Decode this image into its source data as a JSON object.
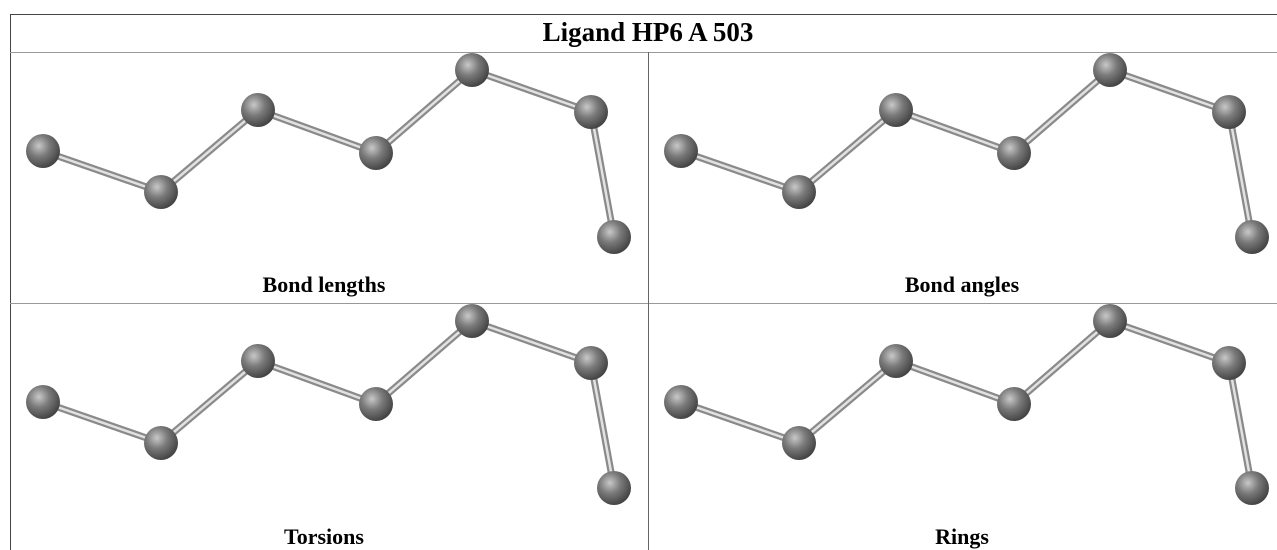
{
  "title": "Ligand HP6 A 503",
  "panels": [
    {
      "caption": "Bond lengths"
    },
    {
      "caption": "Bond angles"
    },
    {
      "caption": "Torsions"
    },
    {
      "caption": "Rings"
    }
  ]
}
